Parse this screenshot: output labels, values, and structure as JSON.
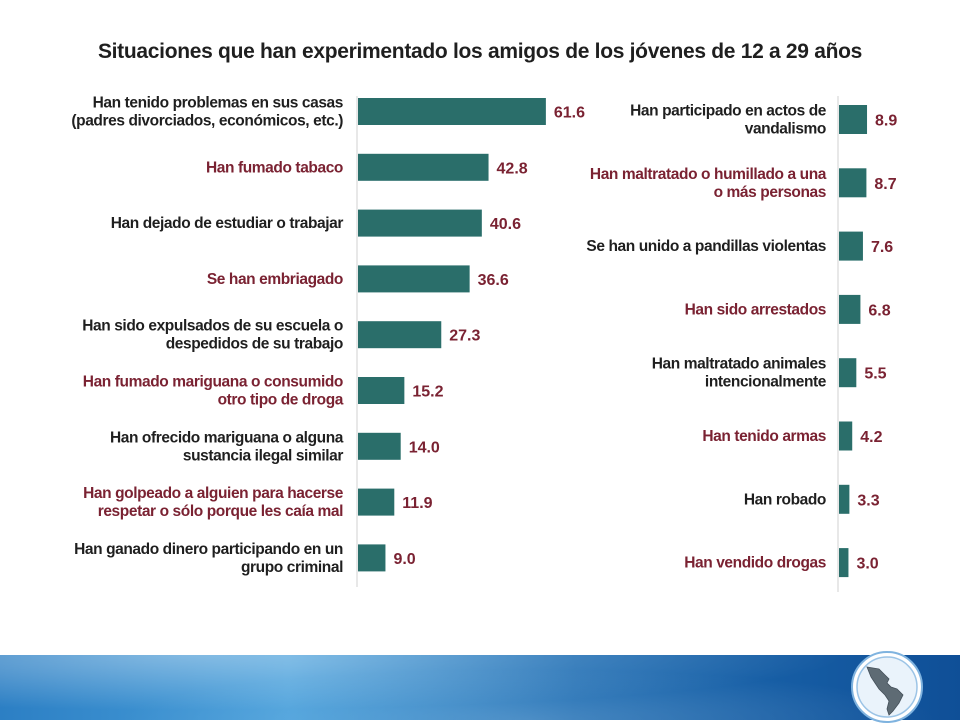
{
  "title": "Situaciones que han experimentado los amigos de los jóvenes de 12 a 29 años",
  "colors": {
    "bar": "#2a6e6a",
    "label_dark": "#1f1f1f",
    "label_accent": "#7a2232",
    "value": "#7a2232"
  },
  "icons": {
    "logo": "latin-america-map-logo"
  },
  "chart_data": [
    {
      "type": "bar",
      "orientation": "horizontal",
      "categories": [
        "Han tenido problemas en sus casas\n(padres divorciados, económicos, etc.)",
        "Han fumado tabaco",
        "Han dejado de estudiar o trabajar",
        "Se han embriagado",
        "Han sido expulsados de su escuela o\ndespedidos de su trabajo",
        "Han fumado mariguana o consumido\notro tipo de droga",
        "Han ofrecido mariguana o alguna\nsustancia ilegal similar",
        "Han golpeado a alguien para hacerse\nrespetar o sólo porque les caía mal",
        "Han ganado dinero participando en un\ngrupo criminal"
      ],
      "values": [
        61.6,
        42.8,
        40.6,
        36.6,
        27.3,
        15.2,
        14.0,
        11.9,
        9.0
      ],
      "data_labels": [
        "61.6",
        "42.8",
        "40.6",
        "36.6",
        "27.3",
        "15.2",
        "14.0",
        "11.9",
        "9.0"
      ],
      "label_colors": [
        "dark",
        "accent",
        "dark",
        "accent",
        "dark",
        "accent",
        "dark",
        "accent",
        "dark"
      ]
    },
    {
      "type": "bar",
      "orientation": "horizontal",
      "categories": [
        "Han participado en actos de\nvandalismo",
        "Han maltratado o humillado a una\no más personas",
        "Se han unido a pandillas violentas",
        "Han sido arrestados",
        "Han maltratado animales\nintencionalmente",
        "Han tenido armas",
        "Han robado",
        "Han vendido drogas"
      ],
      "values": [
        8.9,
        8.7,
        7.6,
        6.8,
        5.5,
        4.2,
        3.3,
        3.0
      ],
      "data_labels": [
        "8.9",
        "8.7",
        "7.6",
        "6.8",
        "5.5",
        "4.2",
        "3.3",
        "3.0"
      ],
      "label_colors": [
        "dark",
        "accent",
        "dark",
        "accent",
        "dark",
        "accent",
        "dark",
        "accent"
      ]
    }
  ]
}
